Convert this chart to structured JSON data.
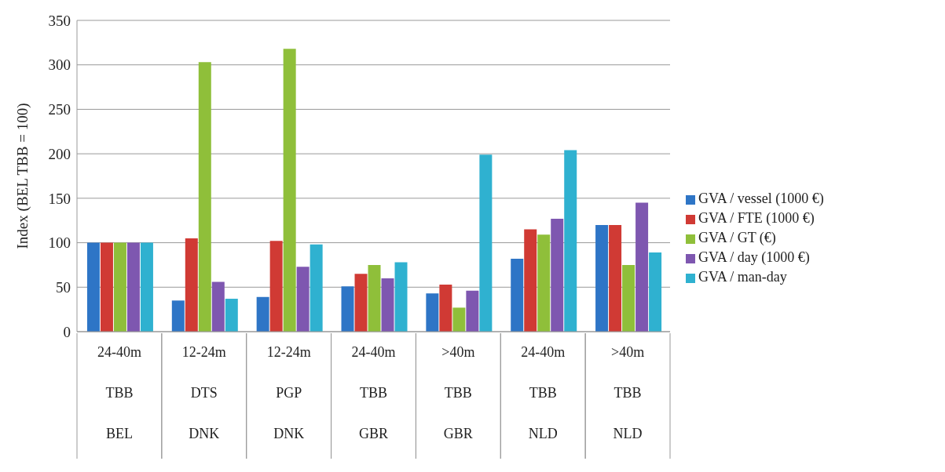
{
  "chart_data": {
    "type": "bar",
    "ylabel": "Index (BEL TBB = 100)",
    "categories": [
      "24-40m\nTBB\nBEL",
      "12-24m\nDTS\nDNK",
      "12-24m\nPGP\nDNK",
      "24-40m\nTBB\nGBR",
      ">40m\nTBB\nGBR",
      "24-40m\nTBB\nNLD",
      ">40m\nTBB\nNLD"
    ],
    "series": [
      {
        "name": "GVA / vessel (1000 €)",
        "color": "#2e75c6",
        "values": [
          100,
          35,
          39,
          51,
          43,
          82,
          120
        ]
      },
      {
        "name": "GVA / FTE (1000 €)",
        "color": "#d03a34",
        "values": [
          100,
          105,
          102,
          65,
          53,
          115,
          120
        ]
      },
      {
        "name": "GVA / GT (€)",
        "color": "#8fbf3a",
        "values": [
          100,
          303,
          318,
          75,
          27,
          109,
          75
        ]
      },
      {
        "name": "GVA / day (1000 €)",
        "color": "#7e57b0",
        "values": [
          100,
          56,
          73,
          60,
          46,
          127,
          145
        ]
      },
      {
        "name": "GVA / man-day",
        "color": "#2fb1d0",
        "values": [
          100,
          37,
          98,
          78,
          199,
          204,
          89
        ]
      }
    ],
    "ylim": [
      0,
      350
    ],
    "yticks": [
      0,
      50,
      100,
      150,
      200,
      250,
      300,
      350
    ],
    "grid": "y",
    "legend": "right"
  }
}
